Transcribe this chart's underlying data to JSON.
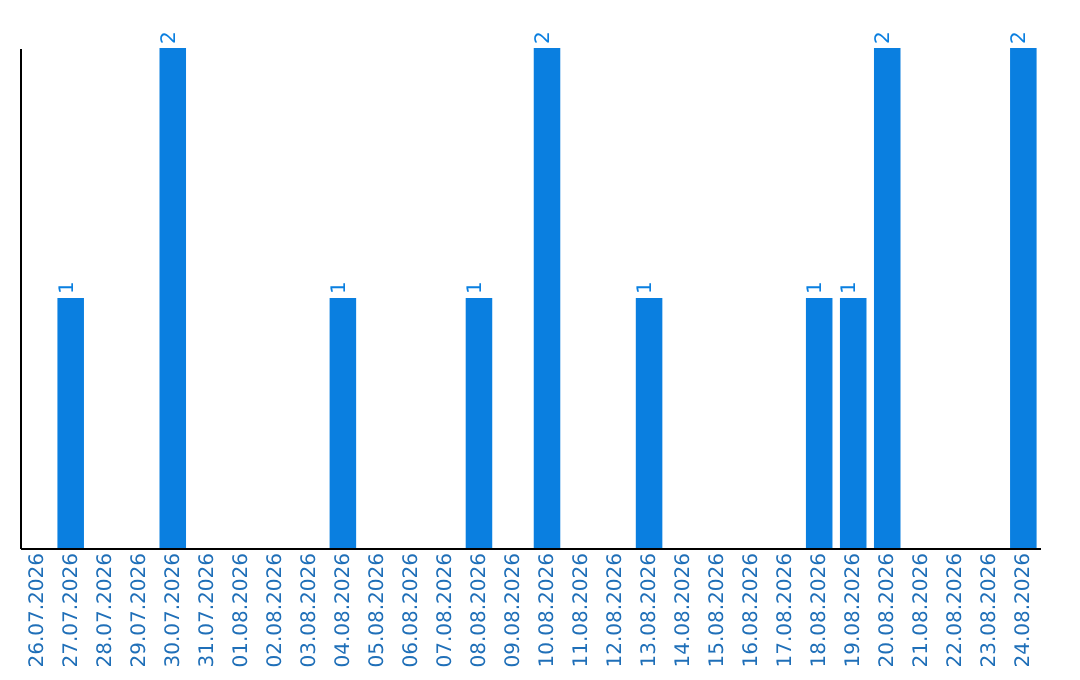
{
  "chart_data": {
    "type": "bar",
    "categories": [
      "26.07.2026",
      "27.07.2026",
      "28.07.2026",
      "29.07.2026",
      "30.07.2026",
      "31.07.2026",
      "01.08.2026",
      "02.08.2026",
      "03.08.2026",
      "04.08.2026",
      "05.08.2026",
      "06.08.2026",
      "07.08.2026",
      "08.08.2026",
      "09.08.2026",
      "10.08.2026",
      "11.08.2026",
      "12.08.2026",
      "13.08.2026",
      "14.08.2026",
      "15.08.2026",
      "16.08.2026",
      "17.08.2026",
      "18.08.2026",
      "19.08.2026",
      "20.08.2026",
      "21.08.2026",
      "22.08.2026",
      "23.08.2026",
      "24.08.2026"
    ],
    "values": [
      0,
      1,
      0,
      0,
      2,
      0,
      0,
      0,
      0,
      1,
      0,
      0,
      0,
      1,
      0,
      2,
      0,
      0,
      1,
      0,
      0,
      0,
      0,
      1,
      1,
      2,
      0,
      0,
      0,
      2
    ],
    "value_labels": [
      null,
      "1",
      null,
      null,
      "2",
      null,
      null,
      null,
      null,
      "1",
      null,
      null,
      null,
      "1",
      null,
      "2",
      null,
      null,
      "1",
      null,
      null,
      null,
      null,
      "1",
      "1",
      "2",
      null,
      null,
      null,
      "2"
    ],
    "color": "#0a7fe0",
    "ylim": [
      0,
      2
    ],
    "tick_labels": "x",
    "grid": false
  }
}
